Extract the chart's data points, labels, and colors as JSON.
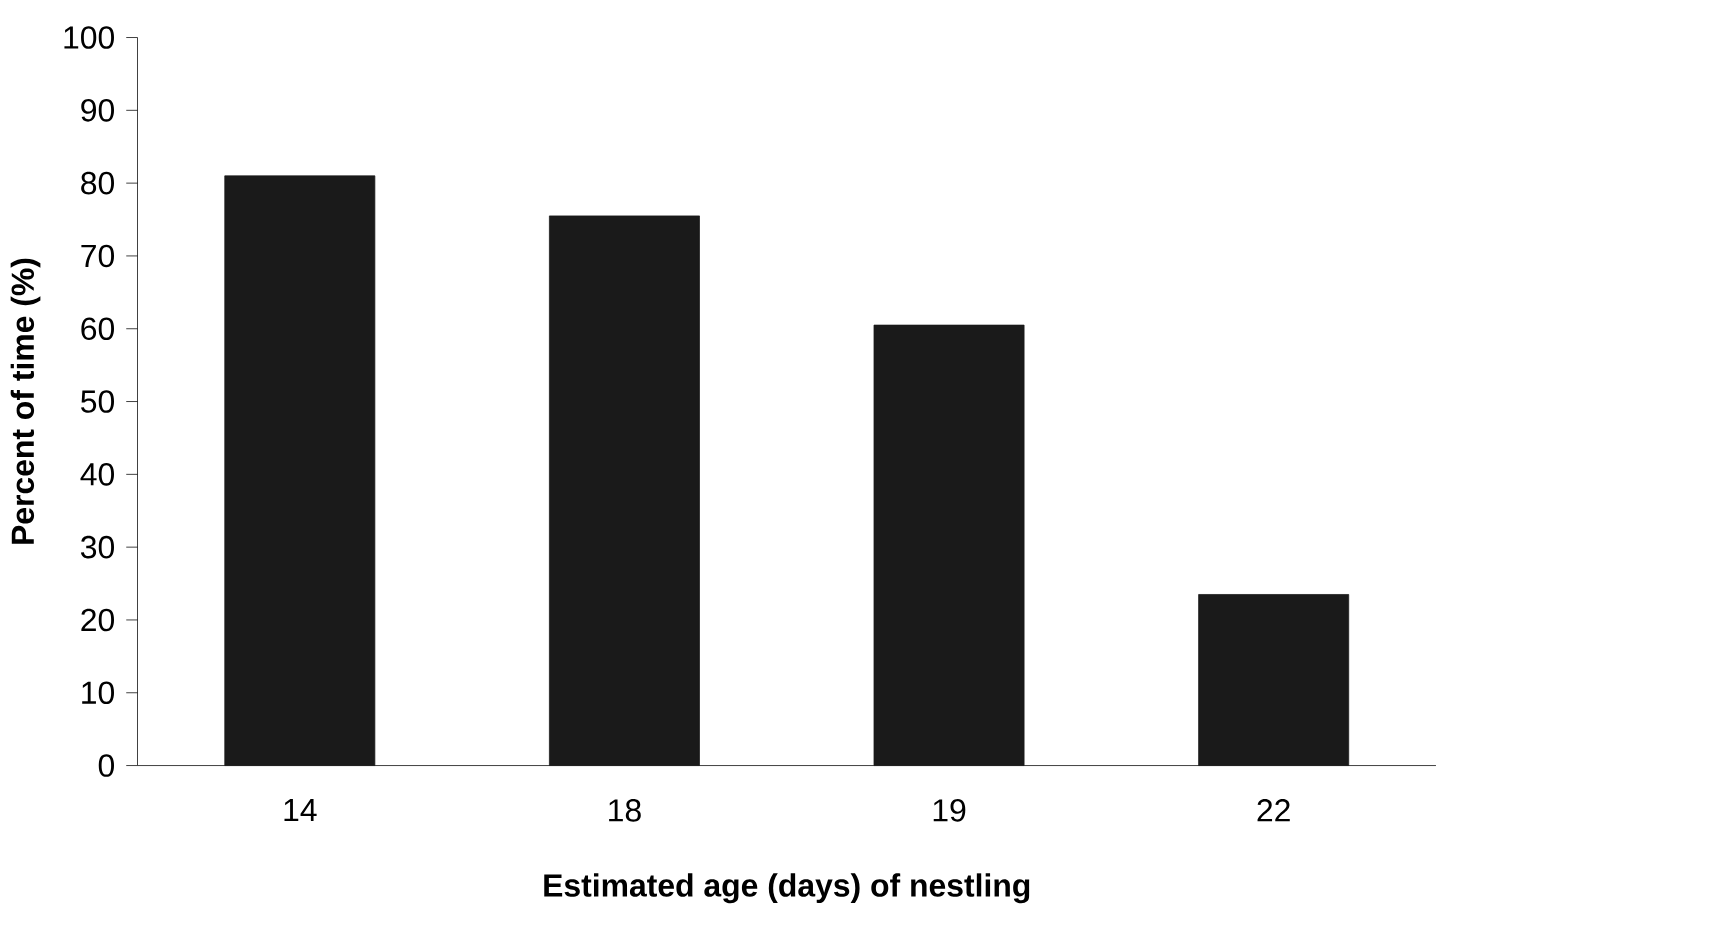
{
  "chart_data": {
    "type": "bar",
    "xlabel": "Estimated age (days) of nestling",
    "ylabel": "Percent of time (%)",
    "categories": [
      "14",
      "18",
      "19",
      "22"
    ],
    "values": [
      81,
      75.5,
      60.5,
      23.5
    ],
    "color": "#1a1a1a",
    "ylim": [
      0,
      100
    ],
    "yticks": [
      0,
      10,
      20,
      30,
      40,
      50,
      60,
      70,
      80,
      90,
      100
    ]
  }
}
